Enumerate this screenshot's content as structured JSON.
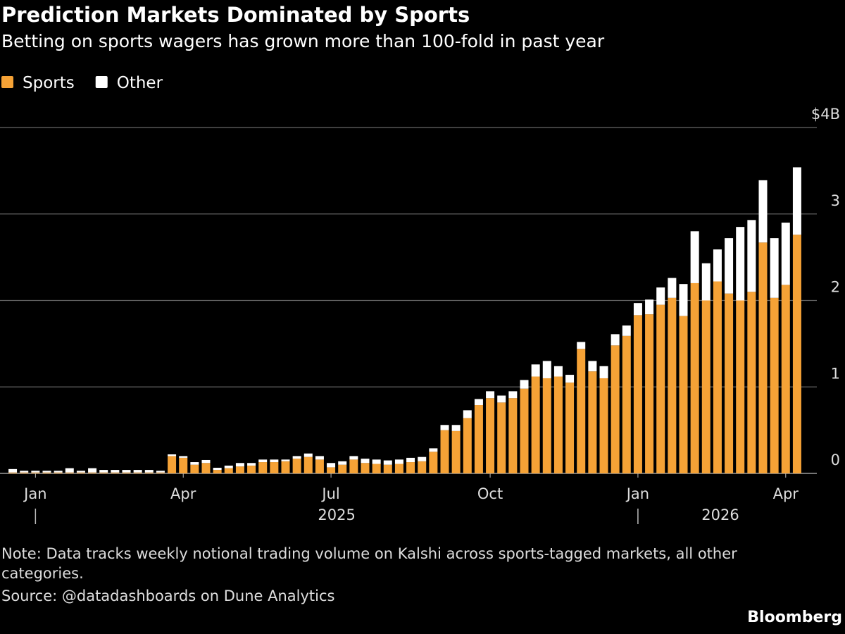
{
  "chart_data": {
    "type": "stacked-bar",
    "title": "Prediction Markets Dominated by Sports",
    "subtitle": "Betting on sports wagers has grown more than 100-fold in past year",
    "note": "Note: Data tracks weekly notional trading volume on Kalshi across sports-tagged markets, all other categories.",
    "source": "Source: @datadashboards on Dune Analytics",
    "brand": "Bloomberg",
    "categories": [
      null,
      null,
      "Jan",
      null,
      null,
      null,
      null,
      null,
      null,
      null,
      null,
      null,
      null,
      null,
      null,
      "Apr",
      null,
      null,
      null,
      null,
      null,
      null,
      null,
      null,
      null,
      null,
      null,
      null,
      "Jul",
      null,
      null,
      null,
      null,
      null,
      null,
      null,
      null,
      null,
      null,
      null,
      null,
      null,
      "Oct",
      null,
      null,
      null,
      null,
      null,
      null,
      null,
      null,
      null,
      null,
      null,
      null,
      "Jan",
      null,
      null,
      null,
      null,
      null,
      null,
      null,
      null,
      null,
      null,
      null,
      null,
      "Apr",
      null
    ],
    "year_labels": [
      "2025",
      "2026"
    ],
    "series": [
      {
        "name": "Sports",
        "color": "#f5a236",
        "values": [
          0.01,
          0.01,
          0.01,
          0.01,
          0.01,
          0.01,
          0.01,
          0.01,
          0.01,
          0.01,
          0.01,
          0.01,
          0.01,
          0.01,
          0.2,
          0.18,
          0.1,
          0.12,
          0.04,
          0.06,
          0.08,
          0.09,
          0.13,
          0.13,
          0.14,
          0.17,
          0.19,
          0.16,
          0.07,
          0.1,
          0.16,
          0.12,
          0.11,
          0.1,
          0.11,
          0.13,
          0.14,
          0.25,
          0.5,
          0.49,
          0.64,
          0.79,
          0.87,
          0.82,
          0.87,
          0.98,
          1.12,
          1.1,
          1.12,
          1.05,
          1.44,
          1.18,
          1.1,
          1.48,
          1.59,
          1.83,
          1.84,
          1.95,
          2.03,
          1.82,
          2.2,
          2.0,
          2.22,
          2.08,
          2.0,
          2.1,
          2.67,
          2.03,
          2.18,
          2.76
        ]
      },
      {
        "name": "Other",
        "color": "#ffffff",
        "values": [
          0.04,
          0.02,
          0.02,
          0.02,
          0.02,
          0.05,
          0.02,
          0.05,
          0.03,
          0.03,
          0.03,
          0.03,
          0.03,
          0.02,
          0.02,
          0.02,
          0.03,
          0.035,
          0.025,
          0.03,
          0.04,
          0.03,
          0.03,
          0.03,
          0.02,
          0.03,
          0.04,
          0.04,
          0.05,
          0.04,
          0.04,
          0.05,
          0.05,
          0.05,
          0.05,
          0.05,
          0.05,
          0.04,
          0.06,
          0.07,
          0.09,
          0.07,
          0.08,
          0.08,
          0.08,
          0.1,
          0.14,
          0.2,
          0.12,
          0.09,
          0.08,
          0.12,
          0.14,
          0.13,
          0.12,
          0.14,
          0.17,
          0.2,
          0.23,
          0.37,
          0.6,
          0.43,
          0.37,
          0.64,
          0.85,
          0.83,
          0.72,
          0.69,
          0.72,
          0.78
        ]
      }
    ],
    "ylim": [
      0,
      4
    ],
    "yticks": [
      0,
      1,
      2,
      3,
      {
        "value": 4,
        "label": "$4B"
      }
    ],
    "grid": true
  }
}
